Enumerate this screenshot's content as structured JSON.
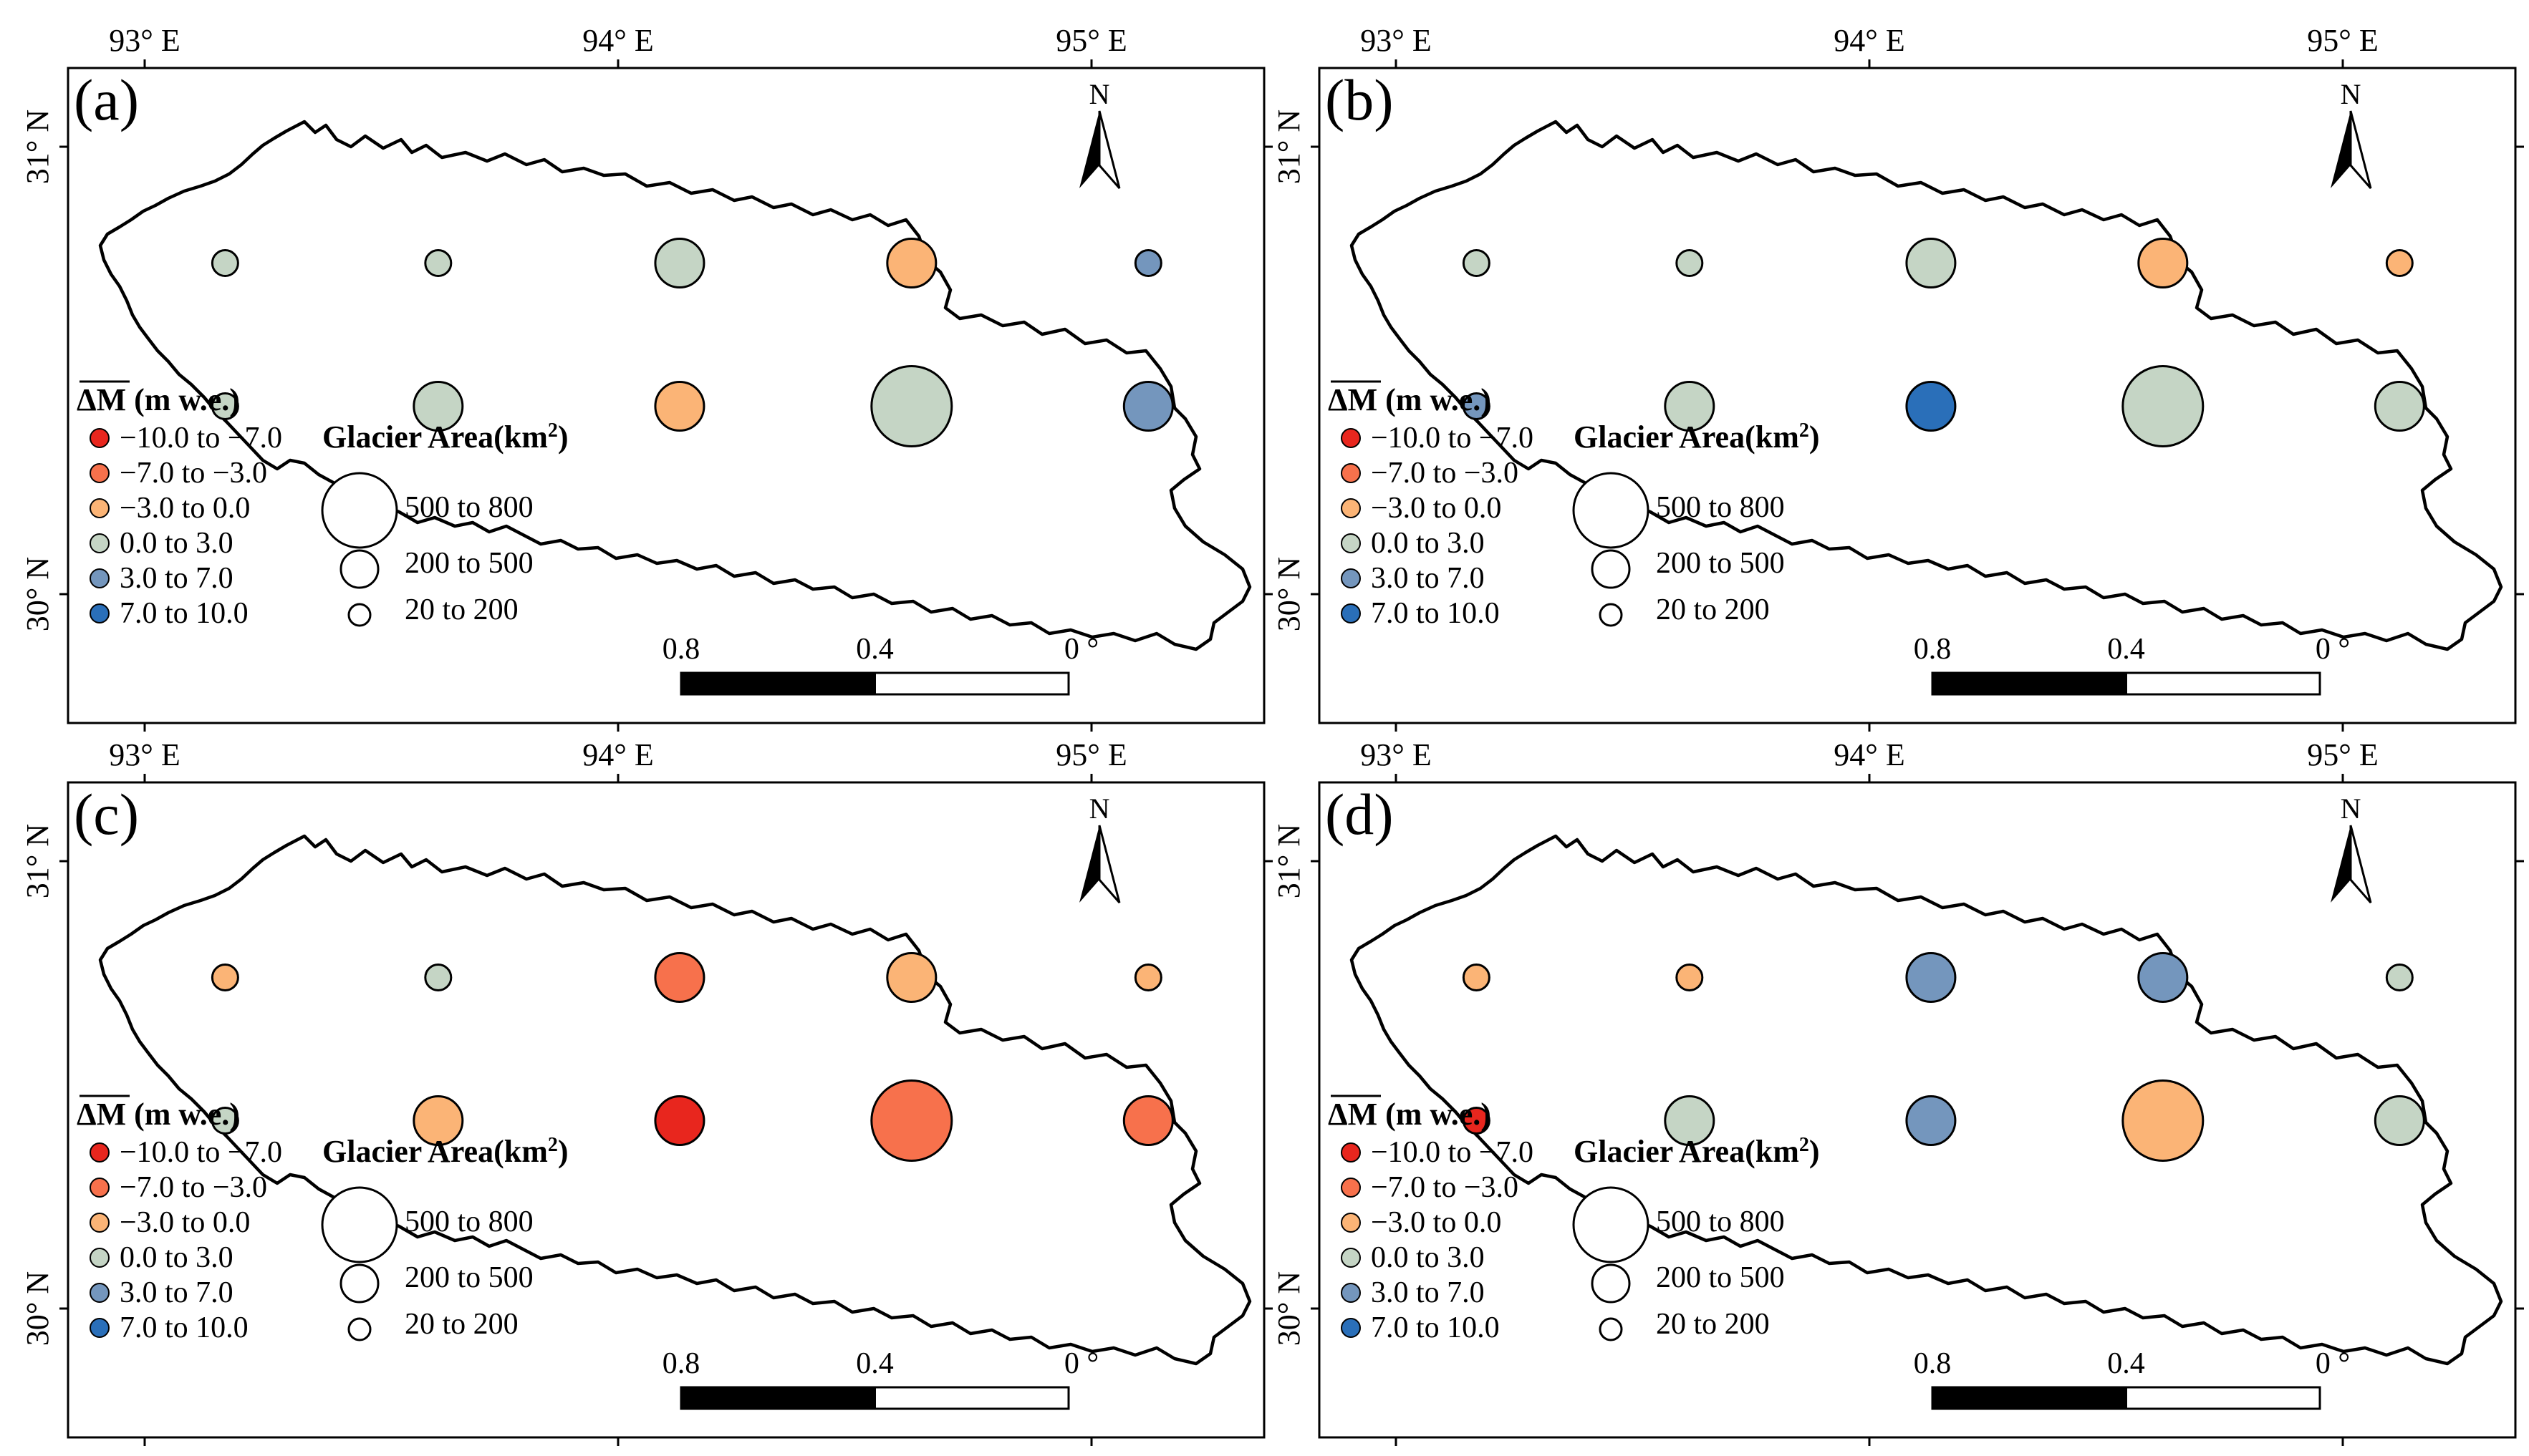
{
  "figure": {
    "lon_ticks": [
      "93° E",
      "94° E",
      "95° E"
    ],
    "lat_ticks": [
      "31° N",
      "30° N"
    ],
    "north_label": "N",
    "scale_labels": [
      "0.8",
      "0.4",
      "0 °"
    ]
  },
  "legend": {
    "dm_title": "ΔM",
    "dm_unit": " (m w.e.)",
    "dm_classes": [
      {
        "label": "−10.0 to −7.0",
        "color": "#e8261e"
      },
      {
        "label": "−7.0 to −3.0",
        "color": "#f7714c"
      },
      {
        "label": "−3.0 to 0.0",
        "color": "#fbb476"
      },
      {
        "label": "0.0 to 3.0",
        "color": "#c5d5c5"
      },
      {
        "label": "3.0 to 7.0",
        "color": "#7496bd"
      },
      {
        "label": "7.0 to 10.0",
        "color": "#2a6fb9"
      }
    ],
    "area_title": "Glacier Area(km",
    "area_sup": "2",
    "area_title_close": ")",
    "area_classes": [
      "500 to 800",
      "200 to 500",
      "20 to 200"
    ]
  },
  "chart_data": [
    {
      "panel": "(a)",
      "type": "map",
      "points": [
        {
          "lon": 93.17,
          "lat": 30.74,
          "size_class": "20 to 200",
          "dm_class": "0.0 to 3.0"
        },
        {
          "lon": 93.62,
          "lat": 30.74,
          "size_class": "20 to 200",
          "dm_class": "0.0 to 3.0"
        },
        {
          "lon": 94.13,
          "lat": 30.74,
          "size_class": "200 to 500",
          "dm_class": "0.0 to 3.0"
        },
        {
          "lon": 94.62,
          "lat": 30.74,
          "size_class": "200 to 500",
          "dm_class": "−3.0 to 0.0"
        },
        {
          "lon": 95.12,
          "lat": 30.74,
          "size_class": "20 to 200",
          "dm_class": "3.0 to 7.0"
        },
        {
          "lon": 93.17,
          "lat": 30.42,
          "size_class": "20 to 200",
          "dm_class": "0.0 to 3.0"
        },
        {
          "lon": 93.62,
          "lat": 30.42,
          "size_class": "200 to 500",
          "dm_class": "0.0 to 3.0"
        },
        {
          "lon": 94.13,
          "lat": 30.42,
          "size_class": "200 to 500",
          "dm_class": "−3.0 to 0.0"
        },
        {
          "lon": 94.62,
          "lat": 30.42,
          "size_class": "500 to 800",
          "dm_class": "0.0 to 3.0"
        },
        {
          "lon": 95.12,
          "lat": 30.42,
          "size_class": "200 to 500",
          "dm_class": "3.0 to 7.0"
        }
      ]
    },
    {
      "panel": "(b)",
      "type": "map",
      "points": [
        {
          "lon": 93.17,
          "lat": 30.74,
          "size_class": "20 to 200",
          "dm_class": "0.0 to 3.0"
        },
        {
          "lon": 93.62,
          "lat": 30.74,
          "size_class": "20 to 200",
          "dm_class": "0.0 to 3.0"
        },
        {
          "lon": 94.13,
          "lat": 30.74,
          "size_class": "200 to 500",
          "dm_class": "0.0 to 3.0"
        },
        {
          "lon": 94.62,
          "lat": 30.74,
          "size_class": "200 to 500",
          "dm_class": "−3.0 to 0.0"
        },
        {
          "lon": 95.12,
          "lat": 30.74,
          "size_class": "20 to 200",
          "dm_class": "−3.0 to 0.0"
        },
        {
          "lon": 93.17,
          "lat": 30.42,
          "size_class": "20 to 200",
          "dm_class": "3.0 to 7.0"
        },
        {
          "lon": 93.62,
          "lat": 30.42,
          "size_class": "200 to 500",
          "dm_class": "0.0 to 3.0"
        },
        {
          "lon": 94.13,
          "lat": 30.42,
          "size_class": "200 to 500",
          "dm_class": "7.0 to 10.0"
        },
        {
          "lon": 94.62,
          "lat": 30.42,
          "size_class": "500 to 800",
          "dm_class": "0.0 to 3.0"
        },
        {
          "lon": 95.12,
          "lat": 30.42,
          "size_class": "200 to 500",
          "dm_class": "0.0 to 3.0"
        }
      ]
    },
    {
      "panel": "(c)",
      "type": "map",
      "points": [
        {
          "lon": 93.17,
          "lat": 30.74,
          "size_class": "20 to 200",
          "dm_class": "−3.0 to 0.0"
        },
        {
          "lon": 93.62,
          "lat": 30.74,
          "size_class": "20 to 200",
          "dm_class": "0.0 to 3.0"
        },
        {
          "lon": 94.13,
          "lat": 30.74,
          "size_class": "200 to 500",
          "dm_class": "−7.0 to −3.0"
        },
        {
          "lon": 94.62,
          "lat": 30.74,
          "size_class": "200 to 500",
          "dm_class": "−3.0 to 0.0"
        },
        {
          "lon": 95.12,
          "lat": 30.74,
          "size_class": "20 to 200",
          "dm_class": "−3.0 to 0.0"
        },
        {
          "lon": 93.17,
          "lat": 30.42,
          "size_class": "20 to 200",
          "dm_class": "0.0 to 3.0"
        },
        {
          "lon": 93.62,
          "lat": 30.42,
          "size_class": "200 to 500",
          "dm_class": "−3.0 to 0.0"
        },
        {
          "lon": 94.13,
          "lat": 30.42,
          "size_class": "200 to 500",
          "dm_class": "−10.0 to −7.0"
        },
        {
          "lon": 94.62,
          "lat": 30.42,
          "size_class": "500 to 800",
          "dm_class": "−7.0 to −3.0"
        },
        {
          "lon": 95.12,
          "lat": 30.42,
          "size_class": "200 to 500",
          "dm_class": "−7.0 to −3.0"
        }
      ]
    },
    {
      "panel": "(d)",
      "type": "map",
      "points": [
        {
          "lon": 93.17,
          "lat": 30.74,
          "size_class": "20 to 200",
          "dm_class": "−3.0 to 0.0"
        },
        {
          "lon": 93.62,
          "lat": 30.74,
          "size_class": "20 to 200",
          "dm_class": "−3.0 to 0.0"
        },
        {
          "lon": 94.13,
          "lat": 30.74,
          "size_class": "200 to 500",
          "dm_class": "3.0 to 7.0"
        },
        {
          "lon": 94.62,
          "lat": 30.74,
          "size_class": "200 to 500",
          "dm_class": "3.0 to 7.0"
        },
        {
          "lon": 95.12,
          "lat": 30.74,
          "size_class": "20 to 200",
          "dm_class": "0.0 to 3.0"
        },
        {
          "lon": 93.17,
          "lat": 30.42,
          "size_class": "20 to 200",
          "dm_class": "−10.0 to −7.0"
        },
        {
          "lon": 93.62,
          "lat": 30.42,
          "size_class": "200 to 500",
          "dm_class": "0.0 to 3.0"
        },
        {
          "lon": 94.13,
          "lat": 30.42,
          "size_class": "200 to 500",
          "dm_class": "3.0 to 7.0"
        },
        {
          "lon": 94.62,
          "lat": 30.42,
          "size_class": "500 to 800",
          "dm_class": "−3.0 to 0.0"
        },
        {
          "lon": 95.12,
          "lat": 30.42,
          "size_class": "200 to 500",
          "dm_class": "0.0 to 3.0"
        }
      ]
    }
  ]
}
